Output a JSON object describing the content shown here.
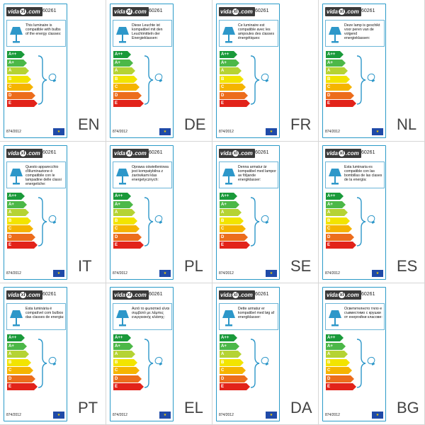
{
  "brand": {
    "logo_text_left": "vida",
    "logo_mark": "xl",
    "logo_text_right": ".com"
  },
  "product_code": "60261",
  "regulation": "874/2012",
  "icons": {
    "lamp": "lamp-icon",
    "bulb": "bulb-icon",
    "eu_flag": "eu-flag-icon"
  },
  "energy_classes": [
    {
      "label": "A++",
      "color": "#1a9a3a"
    },
    {
      "label": "A+",
      "color": "#4cb848"
    },
    {
      "label": "A",
      "color": "#b5d334"
    },
    {
      "label": "B",
      "color": "#f2e400"
    },
    {
      "label": "C",
      "color": "#f5b400"
    },
    {
      "label": "D",
      "color": "#ec6d1c"
    },
    {
      "label": "E",
      "color": "#e2231a"
    }
  ],
  "labels": [
    {
      "lang": "EN",
      "text": "This luminaire is compatible with bulbs of the energy classes:"
    },
    {
      "lang": "DE",
      "text": "Diese Leuchte ist kompatibel mit den Leuchtmitteln der Energieklassen:"
    },
    {
      "lang": "FR",
      "text": "Ce luminaire est compatible avec les ampoules des classes énergétiques:"
    },
    {
      "lang": "NL",
      "text": "Deze lamp is geschikt voor peren van de volgend energieklassen:"
    },
    {
      "lang": "IT",
      "text": "Questo apparecchio d'illuminazione è compatibile con le lampadine delle classi energetiche:"
    },
    {
      "lang": "PL",
      "text": "Oprawa oświetleniowa jest kompatybilna z żarówkami klas energetycznych:"
    },
    {
      "lang": "SE",
      "text": "Denna armatur är kompatibel med lampor av följande energiklasser:"
    },
    {
      "lang": "ES",
      "text": "Esta luminaria es compatible con las bombillas de las clases de la energía:"
    },
    {
      "lang": "PT",
      "text": "Esta luminária é compatível com bulbos das classes de energia:"
    },
    {
      "lang": "EL",
      "text": "Αυτό το φωτιστικό είναι συμβατό με λάμπες ενεργειακής κλάσης:"
    },
    {
      "lang": "DA",
      "text": "Dette armatur er kompatibel med løg af energiklasser:"
    },
    {
      "lang": "BG",
      "text": "Осветителното тяло е съвместимо с крушки от енергийни класове:"
    }
  ]
}
